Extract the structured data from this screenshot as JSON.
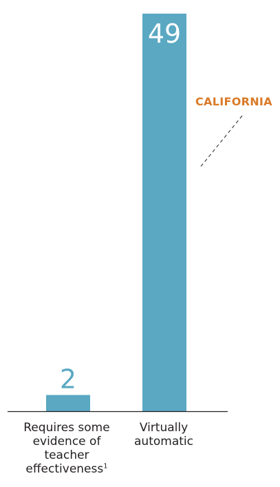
{
  "colors": {
    "bar": "#5aa8c2",
    "inside_value": "#ffffff",
    "outside_value": "#5aa8c2",
    "axis": "#231f20",
    "annotation": "#d97a27"
  },
  "chart_data": {
    "type": "bar",
    "categories": [
      "Requires some evidence of teacher effectiveness",
      "Virtually automatic"
    ],
    "category_footnotes": [
      "1",
      ""
    ],
    "values": [
      2,
      49
    ],
    "value_labels": [
      "2",
      "49"
    ],
    "title": "",
    "xlabel": "",
    "ylabel": "",
    "ylim": [
      0,
      50
    ],
    "grid": false,
    "legend": "none",
    "annotation": {
      "text": "CALIFORNIA",
      "target_category": "Virtually automatic",
      "style": "dashed leader line"
    }
  }
}
